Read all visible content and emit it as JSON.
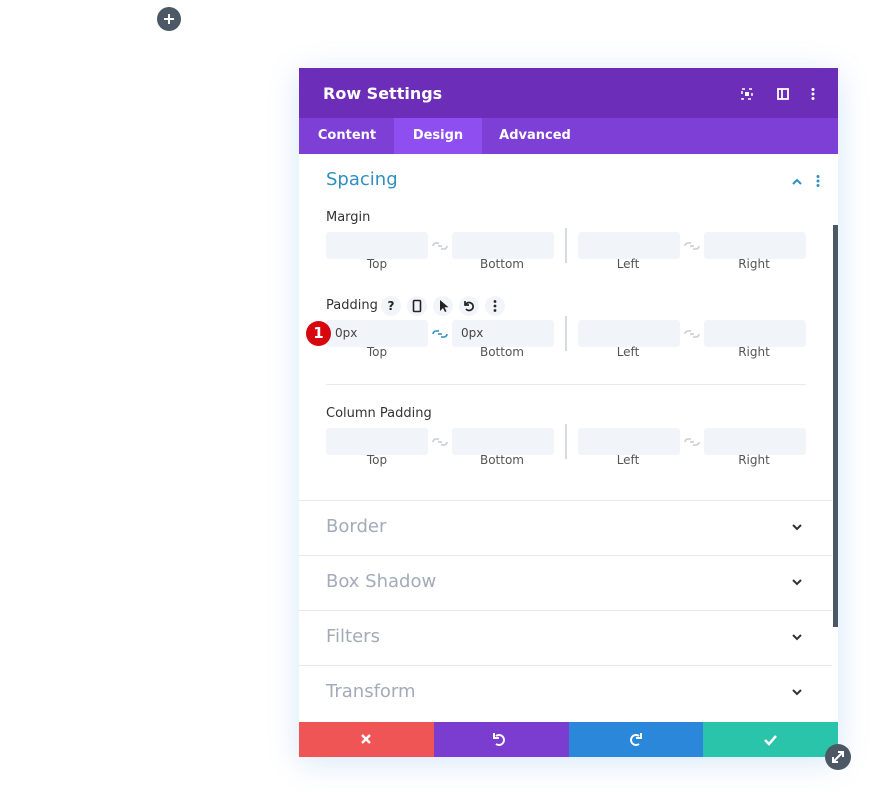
{
  "header": {
    "title": "Row Settings"
  },
  "tabs": [
    "Content",
    "Design",
    "Advanced"
  ],
  "spacing": {
    "title": "Spacing",
    "groups": [
      {
        "label": "Margin",
        "sides": [
          "Top",
          "Bottom",
          "Left",
          "Right"
        ]
      },
      {
        "label": "Padding",
        "help": "?",
        "badge": "1",
        "values": [
          "0px",
          "0px"
        ],
        "sides": [
          "Top",
          "Bottom",
          "Left",
          "Right"
        ]
      },
      {
        "label": "Column Padding",
        "sides": [
          "Top",
          "Bottom",
          "Left",
          "Right"
        ]
      }
    ]
  },
  "sections": [
    "Border",
    "Box Shadow",
    "Filters",
    "Transform"
  ]
}
